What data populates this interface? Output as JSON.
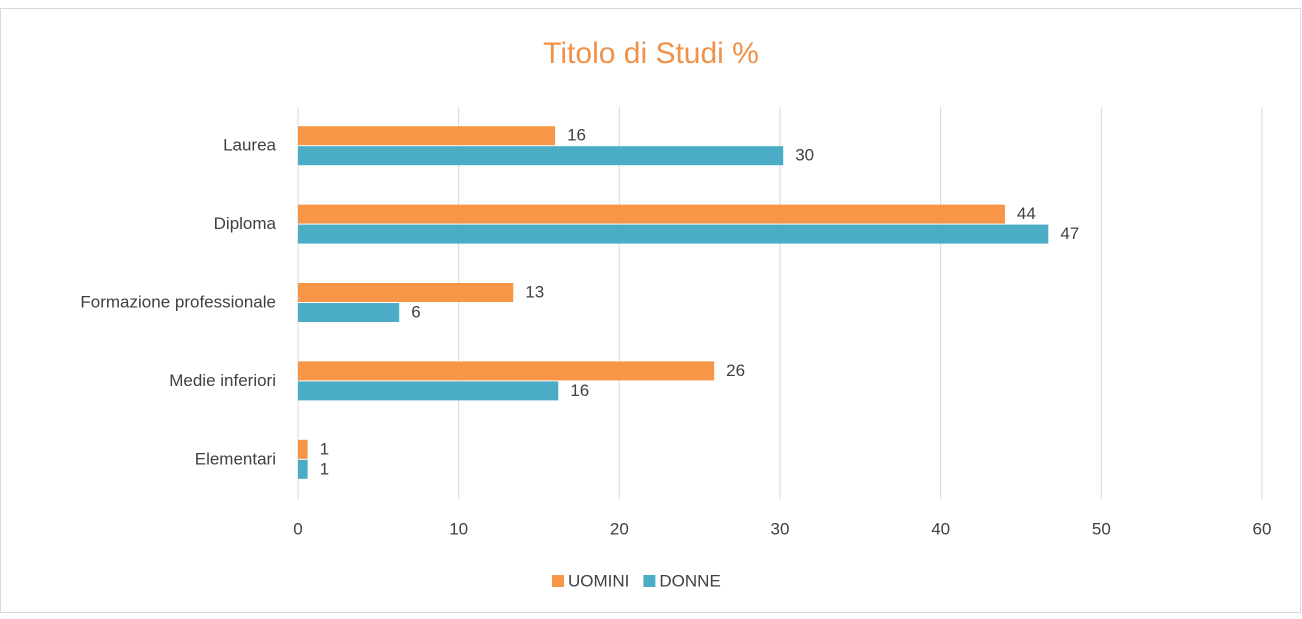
{
  "chart_data": {
    "type": "bar",
    "orientation": "horizontal",
    "title": "Titolo di Studi %",
    "categories": [
      "Laurea",
      "Diploma",
      "Formazione professionale",
      "Medie inferiori",
      "Elementari"
    ],
    "series": [
      {
        "name": "UOMINI",
        "color": "#f79646",
        "values": [
          16,
          44,
          13.4,
          25.9,
          0.6
        ],
        "value_labels": [
          "16",
          "44",
          "13",
          "26",
          "1"
        ]
      },
      {
        "name": "DONNE",
        "color": "#4bacc6",
        "values": [
          30.2,
          46.7,
          6.3,
          16.2,
          0.6
        ],
        "value_labels": [
          "30",
          "47",
          "6",
          "16",
          "1"
        ]
      }
    ],
    "xlim": [
      0,
      60
    ],
    "xticks": [
      0,
      10,
      20,
      30,
      40,
      50,
      60
    ],
    "grid": true,
    "legend": "bottom"
  }
}
